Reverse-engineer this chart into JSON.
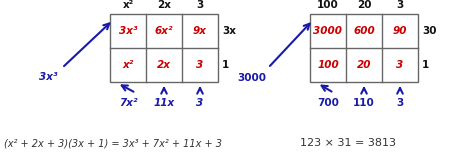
{
  "left_grid": {
    "col_headers": [
      "x²",
      "2x",
      "3"
    ],
    "row_headers": [
      "3x",
      "1"
    ],
    "cells": [
      [
        "3x³",
        "6x²",
        "9x"
      ],
      [
        "x²",
        "2x",
        "3"
      ]
    ]
  },
  "right_grid": {
    "col_headers": [
      "100",
      "20",
      "3"
    ],
    "row_headers": [
      "30",
      "1"
    ],
    "cells": [
      [
        "3000",
        "600",
        "90"
      ],
      [
        "100",
        "20",
        "3"
      ]
    ]
  },
  "left_label_topleft": "3x³",
  "left_label_b1": "7x²",
  "left_label_b2": "11x",
  "left_label_b3": "3",
  "right_label_topleft": "3000",
  "right_label_b1": "700",
  "right_label_b2": "110",
  "right_label_b3": "3",
  "left_equation": "(x² + 2x + 3)(3x + 1) = 3x³ + 7x² + 11x + 3",
  "right_equation": "123 × 31 = 3813",
  "cell_color": "#cc0000",
  "header_color": "#111111",
  "arrow_color": "#1a1aaa",
  "eq_color": "#333333"
}
